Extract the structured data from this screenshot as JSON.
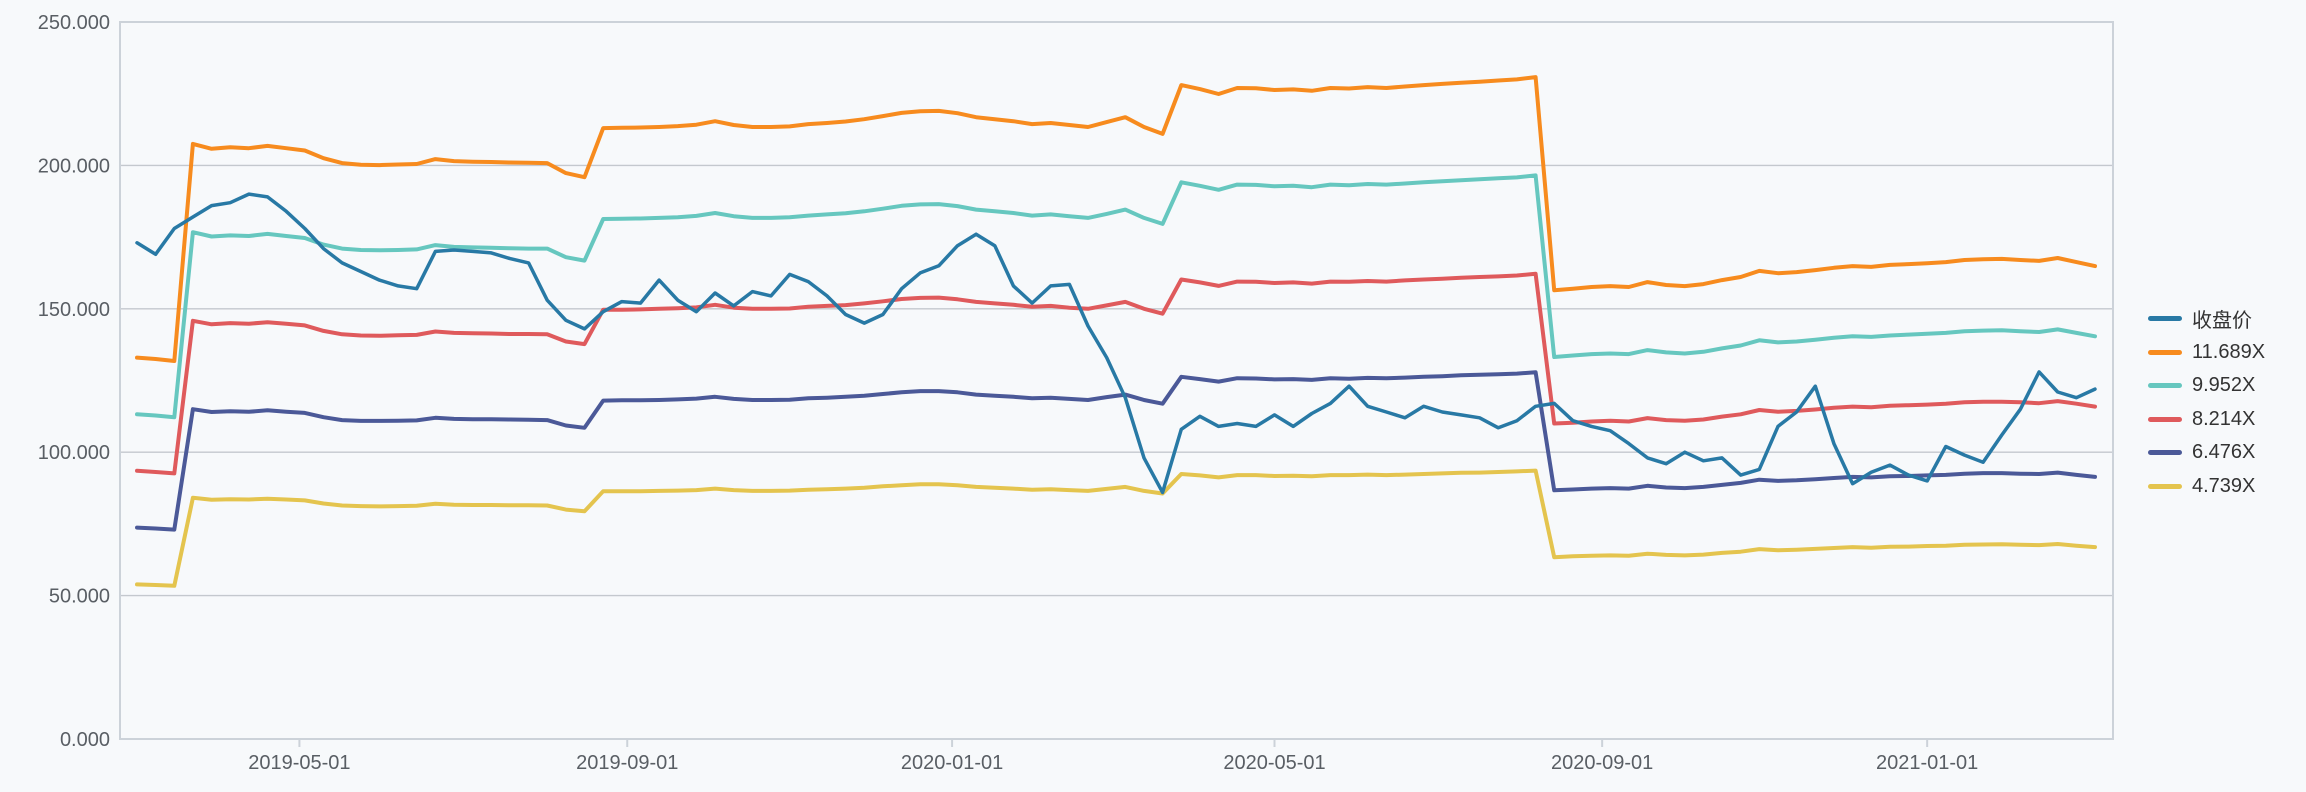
{
  "page": {
    "background": "#f7f9fb",
    "border_color": "#ccd2d9",
    "grid_color": "#c4c8ce",
    "axis_label_color": "#595e64",
    "legend_text_color": "#333333"
  },
  "chart_data": {
    "type": "line",
    "title": "",
    "description": "Weekly closing price (收盘价) with five valuation multiple bands (PE-band style chart)",
    "legend_position": "right",
    "grid": true,
    "x_axis": {
      "start_date": "2019-03-01",
      "interval_days": 7,
      "points": 106,
      "ticks": [
        {
          "label": "2019-05-01",
          "week": 8.71
        },
        {
          "label": "2019-09-01",
          "week": 26.29
        },
        {
          "label": "2020-01-01",
          "week": 43.71
        },
        {
          "label": "2020-05-01",
          "week": 61.0
        },
        {
          "label": "2020-09-01",
          "week": 78.57
        },
        {
          "label": "2021-01-01",
          "week": 96.0
        }
      ]
    },
    "y_axis": {
      "min": 0,
      "max": 250,
      "step": 50,
      "labels": [
        "0.000",
        "50.000",
        "100.000",
        "150.000",
        "200.000",
        "250.000"
      ]
    },
    "series": [
      {
        "name": "收盘价",
        "color": "#2879a5",
        "width": 3.5,
        "role": "price",
        "values": [
          173,
          169,
          178,
          182,
          186,
          187,
          190,
          189,
          184,
          178,
          171,
          166,
          163,
          160,
          158,
          157,
          170,
          170.5,
          170,
          169.5,
          167.5,
          166,
          153,
          146,
          143,
          149,
          152.5,
          152,
          160,
          153,
          149,
          155.5,
          151,
          156,
          154.5,
          162,
          159.5,
          154.5,
          148,
          145,
          148,
          157,
          162.5,
          165,
          172,
          176,
          172,
          158,
          152,
          158,
          158.5,
          144,
          133,
          119,
          98,
          86,
          108,
          112.5,
          109,
          110,
          109,
          113,
          109,
          113.5,
          117,
          123,
          116,
          114,
          112,
          116,
          114,
          113,
          112,
          108.5,
          111,
          116,
          117,
          111,
          109,
          107.5,
          103,
          98,
          96,
          100,
          97,
          98,
          92,
          94,
          109,
          114,
          123,
          103,
          89,
          93,
          95.5,
          92,
          90,
          102,
          99,
          96.5,
          106,
          115,
          128,
          121,
          119,
          122
        ]
      },
      {
        "name": "11.689X",
        "color": "#f78b1e",
        "width": 4,
        "role": "band",
        "values": [
          133,
          132.5,
          131.8,
          207.5,
          205.8,
          206.3,
          206,
          206.8,
          206,
          205.2,
          202.5,
          200.8,
          200.2,
          200.1,
          200.3,
          200.5,
          202.2,
          201.5,
          201.3,
          201.2,
          201,
          200.9,
          200.8,
          197.3,
          195.9,
          213,
          213.1,
          213.2,
          213.4,
          213.7,
          214.2,
          215.4,
          214.1,
          213.4,
          213.4,
          213.6,
          214.4,
          214.8,
          215.3,
          216.1,
          217.2,
          218.3,
          218.9,
          219,
          218.2,
          216.8,
          216.1,
          215.4,
          214.4,
          214.8,
          214.1,
          213.4,
          215.1,
          216.8,
          213.4,
          211,
          228,
          226.6,
          224.9,
          227,
          226.9,
          226.3,
          226.5,
          226,
          227,
          226.8,
          227.3,
          227,
          227.5,
          228,
          228.4,
          228.8,
          229.2,
          229.6,
          230,
          230.8,
          156.5,
          157,
          157.6,
          157.9,
          157.6,
          159.3,
          158.3,
          157.9,
          158.6,
          160,
          161.1,
          163.2,
          162.4,
          162.8,
          163.5,
          164.3,
          164.9,
          164.6,
          165.3,
          165.6,
          165.9,
          166.3,
          167,
          167.3,
          167.4,
          167,
          166.7,
          167.7,
          166.3,
          164.9
        ]
      },
      {
        "name": "9.952X",
        "color": "#66c7bf",
        "width": 4,
        "role": "band",
        "values": [
          113.2,
          112.8,
          112.2,
          176.7,
          175.2,
          175.6,
          175.4,
          176.1,
          175.4,
          174.7,
          172.4,
          171,
          170.5,
          170.4,
          170.5,
          170.7,
          172.2,
          171.6,
          171.4,
          171.3,
          171.1,
          171,
          171,
          168,
          166.8,
          181.3,
          181.4,
          181.5,
          181.7,
          181.9,
          182.4,
          183.4,
          182.3,
          181.7,
          181.7,
          181.9,
          182.5,
          182.9,
          183.3,
          184,
          184.9,
          185.9,
          186.4,
          186.5,
          185.8,
          184.6,
          184,
          183.4,
          182.5,
          182.9,
          182.3,
          181.7,
          183.1,
          184.6,
          181.7,
          179.6,
          194.1,
          192.9,
          191.5,
          193.3,
          193.2,
          192.7,
          192.9,
          192.4,
          193.3,
          193.1,
          193.5,
          193.3,
          193.7,
          194.1,
          194.5,
          194.8,
          195.2,
          195.5,
          195.8,
          196.5,
          133.2,
          133.7,
          134.2,
          134.4,
          134.2,
          135.6,
          134.8,
          134.4,
          135,
          136.2,
          137.2,
          139,
          138.3,
          138.6,
          139.2,
          139.9,
          140.4,
          140.2,
          140.7,
          141,
          141.3,
          141.6,
          142.2,
          142.4,
          142.5,
          142.2,
          141.9,
          142.8,
          141.6,
          140.4
        ]
      },
      {
        "name": "8.214X",
        "color": "#df5a5c",
        "width": 4,
        "role": "band",
        "values": [
          93.5,
          93.1,
          92.6,
          145.8,
          144.6,
          145,
          144.8,
          145.3,
          144.8,
          144.2,
          142.3,
          141.1,
          140.7,
          140.6,
          140.8,
          140.9,
          142.1,
          141.6,
          141.5,
          141.4,
          141.2,
          141.2,
          141.1,
          138.6,
          137.7,
          149.7,
          149.7,
          149.8,
          150,
          150.2,
          150.5,
          151.4,
          150.4,
          150,
          150,
          150.1,
          150.7,
          151,
          151.3,
          151.9,
          152.6,
          153.4,
          153.8,
          153.9,
          153.3,
          152.4,
          151.9,
          151.4,
          150.7,
          151,
          150.4,
          150,
          151.2,
          152.4,
          150,
          148.3,
          160.2,
          159.2,
          158,
          159.5,
          159.4,
          159,
          159.2,
          158.8,
          159.5,
          159.4,
          159.7,
          159.5,
          159.9,
          160.2,
          160.5,
          160.8,
          161.1,
          161.3,
          161.6,
          162.2,
          110,
          110.3,
          110.7,
          111,
          110.7,
          111.9,
          111.2,
          111,
          111.4,
          112.4,
          113.2,
          114.7,
          114.1,
          114.4,
          114.9,
          115.5,
          115.9,
          115.7,
          116.2,
          116.4,
          116.6,
          116.9,
          117.4,
          117.6,
          117.6,
          117.4,
          117.1,
          117.8,
          116.9,
          115.9
        ]
      },
      {
        "name": "6.476X",
        "color": "#4b5998",
        "width": 4,
        "role": "band",
        "values": [
          73.7,
          73.4,
          73,
          115,
          114,
          114.3,
          114.1,
          114.6,
          114.1,
          113.7,
          112.2,
          111.2,
          110.9,
          110.9,
          111,
          111.1,
          112,
          111.6,
          111.5,
          111.5,
          111.4,
          111.3,
          111.2,
          109.3,
          108.5,
          118,
          118.1,
          118.1,
          118.2,
          118.4,
          118.7,
          119.3,
          118.6,
          118.2,
          118.2,
          118.3,
          118.8,
          119,
          119.3,
          119.7,
          120.3,
          120.9,
          121.3,
          121.3,
          120.9,
          120.1,
          119.7,
          119.3,
          118.8,
          119,
          118.6,
          118.2,
          119.2,
          120.1,
          118.2,
          116.9,
          126.3,
          125.5,
          124.6,
          125.8,
          125.7,
          125.4,
          125.5,
          125.2,
          125.8,
          125.6,
          125.9,
          125.8,
          126,
          126.3,
          126.5,
          126.8,
          127,
          127.2,
          127.4,
          127.9,
          86.7,
          87,
          87.3,
          87.5,
          87.3,
          88.3,
          87.7,
          87.5,
          87.9,
          88.6,
          89.3,
          90.4,
          90,
          90.2,
          90.6,
          91,
          91.4,
          91.2,
          91.6,
          91.7,
          91.9,
          92.1,
          92.5,
          92.7,
          92.7,
          92.5,
          92.4,
          92.9,
          92.1,
          91.4
        ]
      },
      {
        "name": "4.739X",
        "color": "#e4c44e",
        "width": 4,
        "role": "band",
        "values": [
          53.9,
          53.7,
          53.4,
          84.1,
          83.4,
          83.6,
          83.5,
          83.8,
          83.5,
          83.2,
          82.1,
          81.4,
          81.2,
          81.1,
          81.2,
          81.3,
          82,
          81.7,
          81.6,
          81.6,
          81.5,
          81.5,
          81.4,
          80,
          79.4,
          86.4,
          86.4,
          86.4,
          86.5,
          86.6,
          86.8,
          87.3,
          86.8,
          86.5,
          86.5,
          86.6,
          86.9,
          87.1,
          87.3,
          87.6,
          88.1,
          88.5,
          88.8,
          88.8,
          88.5,
          87.9,
          87.6,
          87.3,
          86.9,
          87.1,
          86.8,
          86.5,
          87.2,
          87.9,
          86.5,
          85.6,
          92.4,
          91.9,
          91.2,
          92,
          92,
          91.7,
          91.8,
          91.6,
          92,
          92,
          92.2,
          92,
          92.2,
          92.4,
          92.6,
          92.8,
          92.9,
          93.1,
          93.3,
          93.6,
          63.4,
          63.7,
          63.9,
          64,
          63.9,
          64.6,
          64.2,
          64,
          64.3,
          64.9,
          65.3,
          66.2,
          65.8,
          66,
          66.3,
          66.6,
          66.9,
          66.7,
          67,
          67.1,
          67.3,
          67.4,
          67.7,
          67.8,
          67.9,
          67.7,
          67.6,
          68,
          67.4,
          66.9
        ]
      }
    ]
  }
}
